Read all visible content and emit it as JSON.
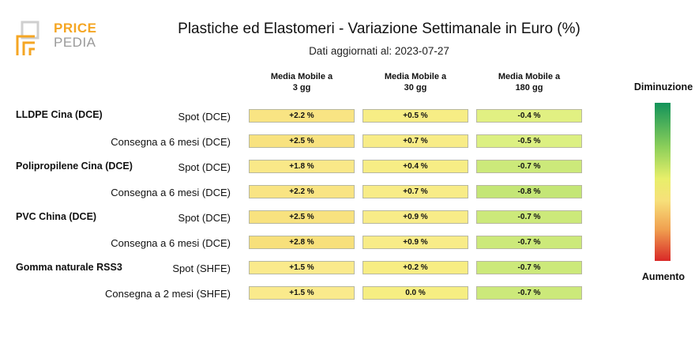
{
  "logo": {
    "price": "PRICE",
    "pedia": "PEDIA"
  },
  "title": "Plastiche ed Elastomeri - Variazione Settimanale in Euro (%)",
  "subtitle": "Dati aggiornati al: 2023-07-27",
  "legend": {
    "top": "Diminuzione",
    "bottom": "Aumento"
  },
  "colors": {
    "increase": "#d92828",
    "decrease": "#12935a",
    "neutral": "#f7e07a"
  },
  "chart_data": {
    "type": "table",
    "columns": [
      {
        "line1": "Media Mobile a",
        "line2": "3 gg"
      },
      {
        "line1": "Media Mobile a",
        "line2": "30 gg"
      },
      {
        "line1": "Media Mobile a",
        "line2": "180 gg"
      }
    ],
    "groups": [
      "LLDPE Cina (DCE)",
      "Polipropilene Cina (DCE)",
      "PVC China (DCE)",
      "Gomma naturale RSS3"
    ],
    "rows": [
      {
        "group": "LLDPE Cina (DCE)",
        "label": "Spot (DCE)",
        "values": [
          2.2,
          0.5,
          -0.4
        ],
        "display": [
          "+2.2 %",
          "+0.5 %",
          "-0.4 %"
        ]
      },
      {
        "group": "",
        "label": "Consegna a 6 mesi (DCE)",
        "values": [
          2.5,
          0.7,
          -0.5
        ],
        "display": [
          "+2.5 %",
          "+0.7 %",
          "-0.5 %"
        ]
      },
      {
        "group": "Polipropilene Cina (DCE)",
        "label": "Spot (DCE)",
        "values": [
          1.8,
          0.4,
          -0.7
        ],
        "display": [
          "+1.8 %",
          "+0.4 %",
          "-0.7 %"
        ]
      },
      {
        "group": "",
        "label": "Consegna a 6 mesi (DCE)",
        "values": [
          2.2,
          0.7,
          -0.8
        ],
        "display": [
          "+2.2 %",
          "+0.7 %",
          "-0.8 %"
        ]
      },
      {
        "group": "PVC China (DCE)",
        "label": "Spot (DCE)",
        "values": [
          2.5,
          0.9,
          -0.7
        ],
        "display": [
          "+2.5 %",
          "+0.9 %",
          "-0.7 %"
        ]
      },
      {
        "group": "",
        "label": "Consegna a 6 mesi (DCE)",
        "values": [
          2.8,
          0.9,
          -0.7
        ],
        "display": [
          "+2.8 %",
          "+0.9 %",
          "-0.7 %"
        ]
      },
      {
        "group": "Gomma naturale RSS3",
        "label": "Spot (SHFE)",
        "values": [
          1.5,
          0.2,
          -0.7
        ],
        "display": [
          "+1.5 %",
          "+0.2 %",
          "-0.7 %"
        ]
      },
      {
        "group": "",
        "label": "Consegna a 2 mesi (SHFE)",
        "values": [
          1.5,
          0.0,
          -0.7
        ],
        "display": [
          "+1.5 %",
          "0.0 %",
          "-0.7 %"
        ]
      }
    ]
  }
}
